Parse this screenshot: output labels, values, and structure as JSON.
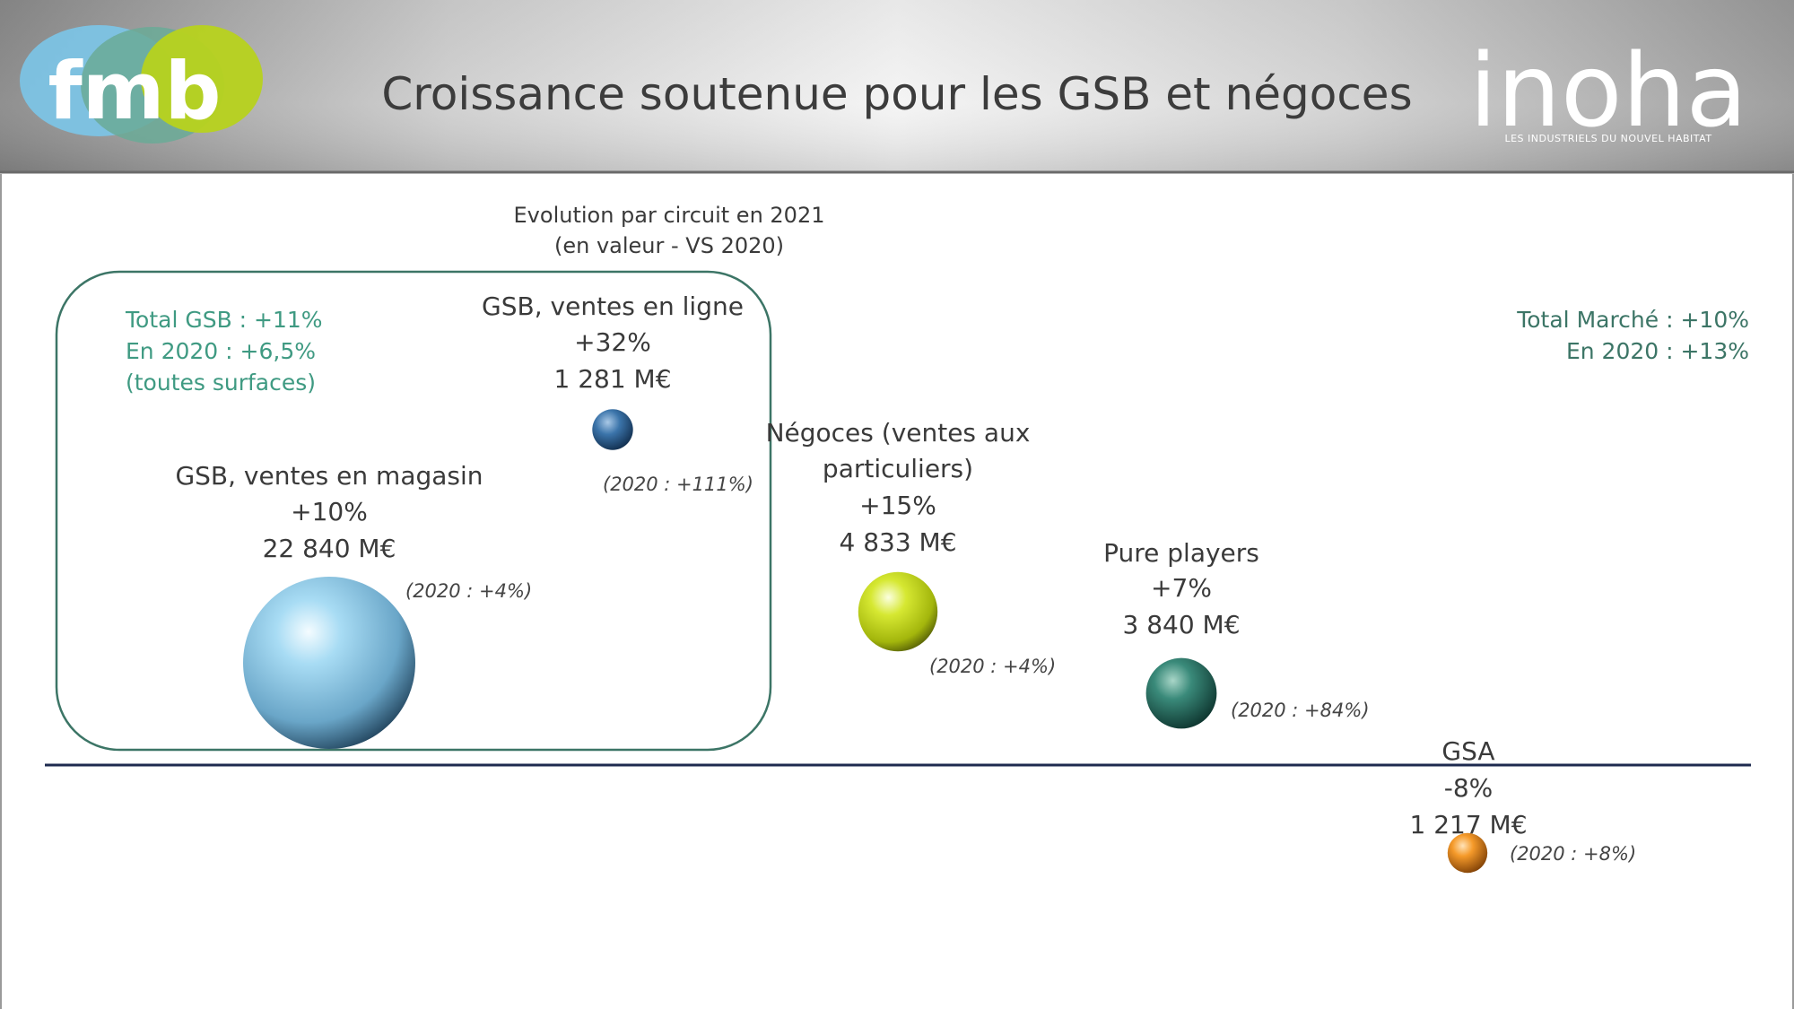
{
  "header": {
    "title": "Croissance soutenue pour les GSB et négoces",
    "left_logo_text": "fmb",
    "right_logo_text": "inoha",
    "right_logo_tagline": "LES INDUSTRIELS DU NOUVEL HABITAT"
  },
  "colors": {
    "header_dark": "#7a7a7a",
    "header_light": "#eeeeee",
    "baseline": "#1e2a4f",
    "group_box": "#3c7566",
    "teal_text": "#3f9a82"
  },
  "chart_data": {
    "type": "bubble",
    "title": "Evolution par circuit en 2021",
    "subtitle": "(en valeur - VS 2020)",
    "group_annotation": [
      "Total GSB : +11%",
      "En 2020 : +6,5%",
      "(toutes surfaces)"
    ],
    "market_annotation": [
      "Total Marché : +10%",
      "En 2020 : +13%"
    ],
    "series": [
      {
        "name": "GSB, ventes en magasin",
        "growth_label": "+10%",
        "growth_pct": 10,
        "value_label": "22 840  M€",
        "value": 22840,
        "prev_label": "(2020 : +4%)",
        "prev_pct": 4,
        "color": "#8ec8e8"
      },
      {
        "name": "GSB, ventes en ligne",
        "growth_label": "+32%",
        "growth_pct": 32,
        "value_label": "1 281  M€",
        "value": 1281,
        "prev_label": "(2020 : +111%)",
        "prev_pct": 111,
        "color": "#2d6aa0"
      },
      {
        "name": "Négoces (ventes aux particuliers)",
        "name_lines": [
          "Négoces (ventes aux",
          "particuliers)"
        ],
        "growth_label": "+15%",
        "growth_pct": 15,
        "value_label": "4 833  M€",
        "value": 4833,
        "prev_label": "(2020 : +4%)",
        "prev_pct": 4,
        "color": "#c8dc1a"
      },
      {
        "name": "Pure players",
        "growth_label": "+7%",
        "growth_pct": 7,
        "value_label": "3 840  M€",
        "value": 3840,
        "prev_label": "(2020 : +84%)",
        "prev_pct": 84,
        "color": "#2f7e70"
      },
      {
        "name": "GSA",
        "growth_label": "-8%",
        "growth_pct": -8,
        "value_label": "1 217  M€",
        "value": 1217,
        "prev_label": "(2020 : +8%)",
        "prev_pct": 8,
        "color": "#f08c1e"
      }
    ]
  }
}
